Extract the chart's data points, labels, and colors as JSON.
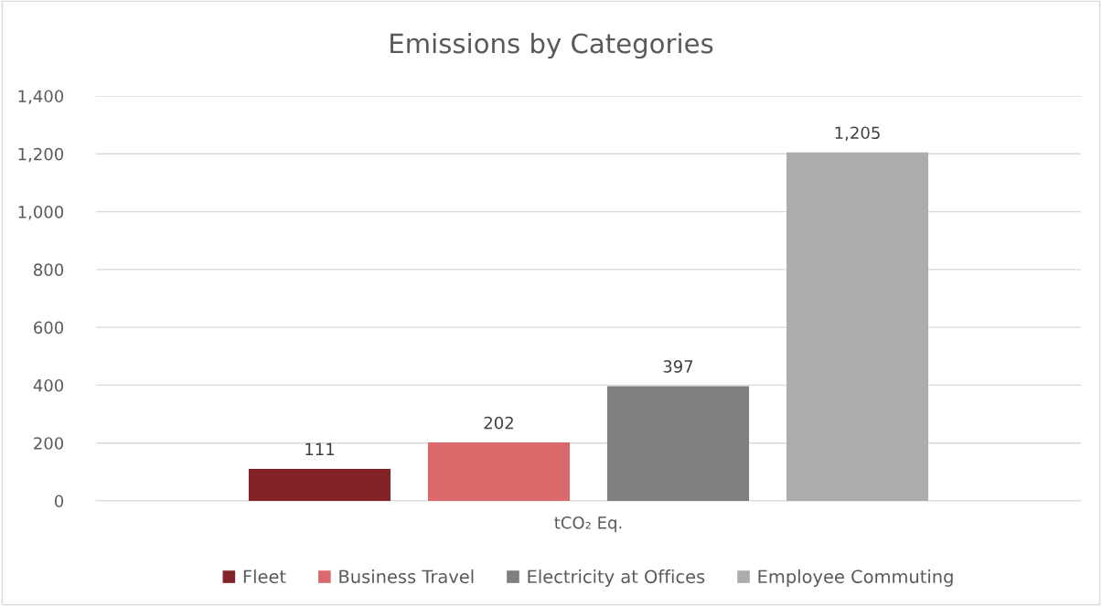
{
  "chart_data": {
    "type": "bar",
    "title": "Emissions by Categories",
    "categories": [
      "tCO₂ Eq."
    ],
    "series": [
      {
        "name": "Fleet",
        "color": "#832327",
        "values": [
          111
        ],
        "value_labels": [
          "111"
        ]
      },
      {
        "name": "Business Travel",
        "color": "#d9696b",
        "values": [
          202
        ],
        "value_labels": [
          "202"
        ]
      },
      {
        "name": "Electricity at Offices",
        "color": "#7f7f7f",
        "values": [
          397
        ],
        "value_labels": [
          "397"
        ]
      },
      {
        "name": "Employee Commuting",
        "color": "#adacaa",
        "values": [
          1205
        ],
        "value_labels": [
          "1,205"
        ]
      }
    ],
    "ylim": [
      0,
      1400
    ],
    "yticks": [
      0,
      200,
      400,
      600,
      800,
      {
        "value": 1000,
        "label": "1,000"
      },
      {
        "value": 1200,
        "label": "1,200"
      },
      {
        "value": 1400,
        "label": "1,400"
      }
    ],
    "grid": "y",
    "legend": "bottom"
  }
}
